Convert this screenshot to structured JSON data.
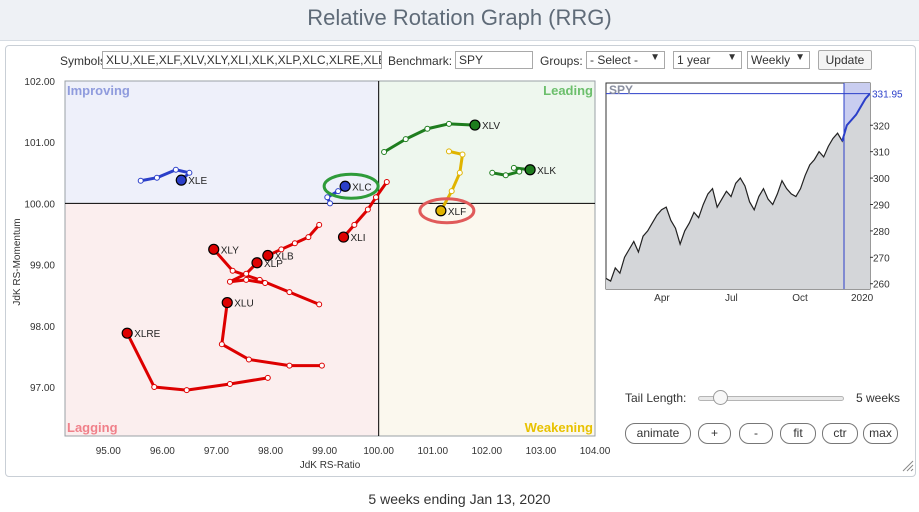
{
  "title": "Relative Rotation Graph (RRG)",
  "toolbar": {
    "symbols_label": "Symbols:",
    "symbols_value": "XLU,XLE,XLF,XLV,XLY,XLI,XLK,XLP,XLC,XLRE,XLB",
    "benchmark_label": "Benchmark:",
    "benchmark_value": "SPY",
    "groups_label": "Groups:",
    "groups_value": "- Select -",
    "period_value": "1 year",
    "interval_value": "Weekly",
    "update_label": "Update"
  },
  "chart_data": [
    {
      "type": "scatter",
      "xlabel": "JdK RS-Ratio",
      "ylabel": "JdK RS-Momentum",
      "xlim": [
        94.2,
        104.0
      ],
      "ylim": [
        96.2,
        102.0
      ],
      "xticks": [
        "95.00",
        "96.00",
        "97.00",
        "98.00",
        "99.00",
        "100.00",
        "101.00",
        "102.00",
        "103.00",
        "104.00"
      ],
      "yticks": [
        "97.00",
        "98.00",
        "99.00",
        "100.00",
        "101.00",
        "102.00"
      ],
      "quadrants": {
        "improving": "Improving",
        "leading": "Leading",
        "lagging": "Lagging",
        "weakening": "Weakening"
      },
      "series": [
        {
          "name": "XLV",
          "color": "#1e7d1e",
          "points": [
            [
              100.1,
              100.84
            ],
            [
              100.5,
              101.05
            ],
            [
              100.9,
              101.22
            ],
            [
              101.3,
              101.3
            ],
            [
              101.78,
              101.28
            ]
          ]
        },
        {
          "name": "XLK",
          "color": "#1e7d1e",
          "points": [
            [
              102.1,
              100.5
            ],
            [
              102.35,
              100.46
            ],
            [
              102.6,
              100.52
            ],
            [
              102.5,
              100.58
            ],
            [
              102.8,
              100.55
            ]
          ]
        },
        {
          "name": "XLE",
          "color": "#2b3fc9",
          "points": [
            [
              95.6,
              100.37
            ],
            [
              95.9,
              100.42
            ],
            [
              96.25,
              100.55
            ],
            [
              96.5,
              100.5
            ],
            [
              96.35,
              100.38
            ]
          ]
        },
        {
          "name": "XLC",
          "color": "#2b3fc9",
          "points": [
            [
              99.1,
              100.0
            ],
            [
              99.05,
              100.1
            ],
            [
              99.25,
              100.2
            ],
            [
              99.4,
              100.26
            ],
            [
              99.38,
              100.28
            ]
          ]
        },
        {
          "name": "XLF",
          "color": "#e0b400",
          "points": [
            [
              101.3,
              100.85
            ],
            [
              101.55,
              100.8
            ],
            [
              101.5,
              100.5
            ],
            [
              101.35,
              100.2
            ],
            [
              101.15,
              99.88
            ]
          ]
        },
        {
          "name": "XLI",
          "color": "#dd0000",
          "points": [
            [
              100.15,
              100.35
            ],
            [
              99.95,
              100.1
            ],
            [
              99.8,
              99.9
            ],
            [
              99.55,
              99.65
            ],
            [
              99.35,
              99.45
            ]
          ]
        },
        {
          "name": "XLB",
          "color": "#dd0000",
          "points": [
            [
              98.9,
              99.65
            ],
            [
              98.7,
              99.45
            ],
            [
              98.45,
              99.35
            ],
            [
              98.2,
              99.25
            ],
            [
              97.95,
              99.15
            ]
          ]
        },
        {
          "name": "XLY",
          "color": "#dd0000",
          "points": [
            [
              98.9,
              98.35
            ],
            [
              98.35,
              98.55
            ],
            [
              97.8,
              98.75
            ],
            [
              97.3,
              98.9
            ],
            [
              96.95,
              99.25
            ]
          ]
        },
        {
          "name": "XLP",
          "color": "#dd0000",
          "points": [
            [
              97.9,
              98.7
            ],
            [
              97.55,
              98.75
            ],
            [
              97.25,
              98.72
            ],
            [
              97.55,
              98.85
            ],
            [
              97.75,
              99.03
            ]
          ]
        },
        {
          "name": "XLU",
          "color": "#dd0000",
          "points": [
            [
              98.95,
              97.35
            ],
            [
              98.35,
              97.35
            ],
            [
              97.6,
              97.45
            ],
            [
              97.1,
              97.7
            ],
            [
              97.2,
              98.38
            ]
          ]
        },
        {
          "name": "XLRE",
          "color": "#dd0000",
          "points": [
            [
              97.95,
              97.15
            ],
            [
              97.25,
              97.05
            ],
            [
              96.45,
              96.95
            ],
            [
              95.85,
              97.0
            ],
            [
              95.35,
              97.88
            ]
          ]
        }
      ],
      "highlights": [
        {
          "symbol": "XLC",
          "color": "#2e9b3a"
        },
        {
          "symbol": "XLF",
          "color": "#e05a5a"
        }
      ]
    },
    {
      "type": "area",
      "title": "SPY",
      "xticks": [
        "Apr",
        "Jul",
        "Oct",
        "2020"
      ],
      "yticks": [
        "260",
        "270",
        "280",
        "290",
        "300",
        "310",
        "320"
      ],
      "ylim": [
        258,
        336
      ],
      "last_value": "331.95",
      "values": [
        262,
        261,
        266,
        264,
        270,
        273,
        276,
        272,
        278,
        280,
        283,
        286,
        288,
        289,
        284,
        281,
        275,
        280,
        283,
        287,
        285,
        290,
        294,
        296,
        289,
        292,
        295,
        293,
        298,
        300,
        297,
        291,
        288,
        293,
        296,
        292,
        290,
        294,
        299,
        296,
        294,
        293,
        296,
        301,
        305,
        307,
        310,
        308,
        312,
        315,
        317,
        314,
        320,
        322,
        324,
        327,
        330,
        332
      ]
    }
  ],
  "controls": {
    "tail_length_label": "Tail Length:",
    "tail_length_value": "5 weeks",
    "tail_length_weeks": 5,
    "buttons": [
      "animate",
      "+",
      "-",
      "fit",
      "ctr",
      "max"
    ]
  },
  "footer": "5 weeks ending Jan 13, 2020"
}
